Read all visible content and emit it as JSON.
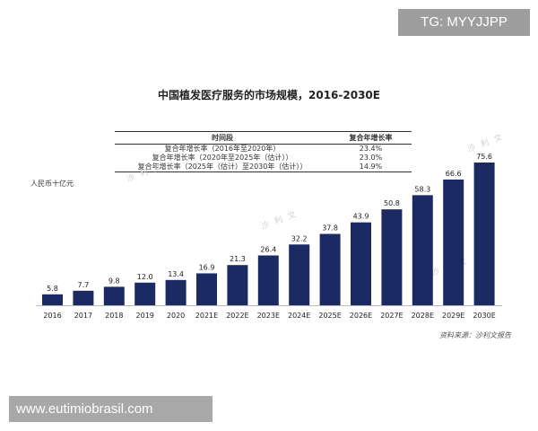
{
  "badges": {
    "top_right": "TG: MYYJJPP",
    "bottom_left": "www.eutimiobrasil.com"
  },
  "watermark": "沙 利 文",
  "chart_data": {
    "type": "bar",
    "title": "中国植发医疗服务的市场规模，2016-2030E",
    "ylabel": "人民币十亿元",
    "xlabel": "",
    "categories": [
      "2016",
      "2017",
      "2018",
      "2019",
      "2020",
      "2021E",
      "2022E",
      "2023E",
      "2024E",
      "2025E",
      "2026E",
      "2027E",
      "2028E",
      "2029E",
      "2030E"
    ],
    "values": [
      5.8,
      7.7,
      9.8,
      12.0,
      13.4,
      16.9,
      21.3,
      26.4,
      32.2,
      37.8,
      43.9,
      50.8,
      58.3,
      66.6,
      75.6
    ],
    "value_labels": [
      "5.8",
      "7.7",
      "9.8",
      "12.0",
      "13.4",
      "16.9",
      "21.3",
      "26.4",
      "32.2",
      "37.8",
      "43.9",
      "50.8",
      "58.3",
      "66.6",
      "75.6"
    ],
    "bar_color": "#1b2a63",
    "ylim": [
      0,
      80
    ],
    "grid": false,
    "cagr_table": {
      "headers": [
        "时间段",
        "复合年增长率"
      ],
      "rows": [
        {
          "period": "复合年增长率（2016年至2020年）",
          "rate": "23.4%"
        },
        {
          "period": "复合年增长率（2020年至2025年（估计））",
          "rate": "23.0%"
        },
        {
          "period": "复合年增长率（2025年（估计）至2030年（估计））",
          "rate": "14.9%"
        }
      ]
    },
    "source": "资料来源：沙利文报告"
  }
}
